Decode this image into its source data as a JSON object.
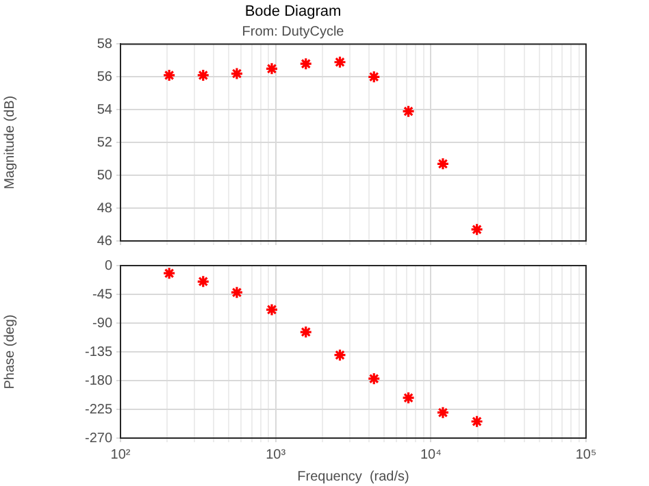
{
  "chart_data": [
    {
      "type": "scatter",
      "title": "Bode Diagram",
      "subtitle": "From: DutyCycle",
      "ylabel": "Magnitude (dB)",
      "log": "x",
      "grid": true,
      "marker": "cross",
      "tick_labels": "y",
      "xlim": [
        100,
        100000
      ],
      "xticks": [
        {
          "value": 100,
          "label": null
        },
        {
          "value": 200,
          "label": null
        },
        {
          "value": 300,
          "label": null
        },
        {
          "value": 400,
          "label": null
        },
        {
          "value": 500,
          "label": null
        },
        {
          "value": 600,
          "label": null
        },
        {
          "value": 700,
          "label": null
        },
        {
          "value": 800,
          "label": null
        },
        {
          "value": 900,
          "label": null
        },
        {
          "value": 1000,
          "label": null
        },
        {
          "value": 2000,
          "label": null
        },
        {
          "value": 3000,
          "label": null
        },
        {
          "value": 4000,
          "label": null
        },
        {
          "value": 5000,
          "label": null
        },
        {
          "value": 6000,
          "label": null
        },
        {
          "value": 7000,
          "label": null
        },
        {
          "value": 8000,
          "label": null
        },
        {
          "value": 9000,
          "label": null
        },
        {
          "value": 10000,
          "label": null
        },
        {
          "value": 20000,
          "label": null
        },
        {
          "value": 30000,
          "label": null
        },
        {
          "value": 40000,
          "label": null
        },
        {
          "value": 50000,
          "label": null
        },
        {
          "value": 60000,
          "label": null
        },
        {
          "value": 70000,
          "label": null
        },
        {
          "value": 80000,
          "label": null
        },
        {
          "value": 90000,
          "label": null
        },
        {
          "value": 100000,
          "label": null
        }
      ],
      "ylim": [
        46,
        58
      ],
      "yticks": [
        46,
        48,
        50,
        52,
        54,
        56,
        58
      ],
      "series": [
        {
          "color": "#ff0000",
          "x": [
            206,
            341,
            562,
            944,
            1565,
            2594,
            4300,
            7170,
            11960,
            19800
          ],
          "values": [
            56.1,
            56.1,
            56.2,
            56.5,
            56.8,
            56.9,
            56.0,
            53.9,
            50.7,
            46.7
          ]
        }
      ]
    },
    {
      "type": "scatter",
      "xlabel": "Frequency  (rad/s)",
      "ylabel": "Phase (deg)",
      "log": "x",
      "grid": true,
      "marker": "cross",
      "xlim": [
        100,
        100000
      ],
      "xticks": [
        {
          "value": 100,
          "label": "10²"
        },
        {
          "value": 200,
          "label": null
        },
        {
          "value": 300,
          "label": null
        },
        {
          "value": 400,
          "label": null
        },
        {
          "value": 500,
          "label": null
        },
        {
          "value": 600,
          "label": null
        },
        {
          "value": 700,
          "label": null
        },
        {
          "value": 800,
          "label": null
        },
        {
          "value": 900,
          "label": null
        },
        {
          "value": 1000,
          "label": "10³"
        },
        {
          "value": 2000,
          "label": null
        },
        {
          "value": 3000,
          "label": null
        },
        {
          "value": 4000,
          "label": null
        },
        {
          "value": 5000,
          "label": null
        },
        {
          "value": 6000,
          "label": null
        },
        {
          "value": 7000,
          "label": null
        },
        {
          "value": 8000,
          "label": null
        },
        {
          "value": 9000,
          "label": null
        },
        {
          "value": 10000,
          "label": "10⁴"
        },
        {
          "value": 20000,
          "label": null
        },
        {
          "value": 30000,
          "label": null
        },
        {
          "value": 40000,
          "label": null
        },
        {
          "value": 50000,
          "label": null
        },
        {
          "value": 60000,
          "label": null
        },
        {
          "value": 70000,
          "label": null
        },
        {
          "value": 80000,
          "label": null
        },
        {
          "value": 90000,
          "label": null
        },
        {
          "value": 100000,
          "label": "10⁵"
        }
      ],
      "ylim": [
        -270,
        0
      ],
      "yticks": [
        -270,
        -225,
        -180,
        -135,
        -90,
        -45,
        0
      ],
      "series": [
        {
          "color": "#ff0000",
          "x": [
            206,
            341,
            562,
            944,
            1565,
            2594,
            4300,
            7170,
            11960,
            19800
          ],
          "values": [
            -12,
            -25,
            -42,
            -69,
            -104,
            -140,
            -177,
            -207,
            -230,
            -244
          ]
        }
      ]
    }
  ]
}
